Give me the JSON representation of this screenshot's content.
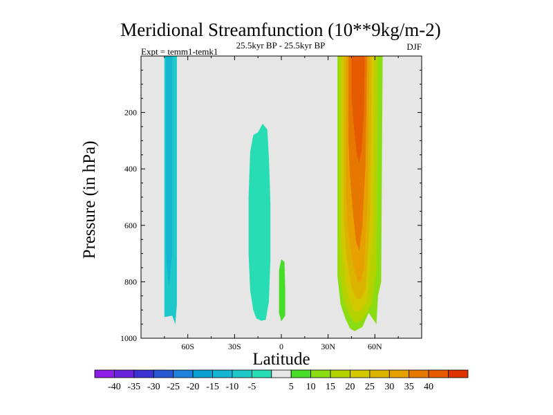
{
  "chart_data": {
    "type": "heatmap",
    "title": "Meridional Streamfunction (10**9kg/m-2)",
    "left_label": "Expt = temm1-temk1",
    "center_label": "25.5kyr BP - 25.5kyr BP",
    "right_label": "DJF",
    "xlabel": "Latitude",
    "ylabel": "Pressure (in hPa)",
    "xlim": [
      -90,
      90
    ],
    "ylim": [
      1000,
      0
    ],
    "xticks": [
      {
        "value": -60,
        "label": "60S"
      },
      {
        "value": -30,
        "label": "30S"
      },
      {
        "value": 0,
        "label": "0"
      },
      {
        "value": 30,
        "label": "30N"
      },
      {
        "value": 60,
        "label": "60N"
      }
    ],
    "yticks": [
      {
        "value": 200,
        "label": "200"
      },
      {
        "value": 400,
        "label": "400"
      },
      {
        "value": 600,
        "label": "600"
      },
      {
        "value": 800,
        "label": "800"
      },
      {
        "value": 1000,
        "label": "1000"
      }
    ],
    "background_color": "#e6e6e6",
    "colorbar": {
      "labels": [
        "-40",
        "-35",
        "-30",
        "-25",
        "-20",
        "-15",
        "-10",
        "-5",
        "5",
        "10",
        "15",
        "20",
        "25",
        "30",
        "35",
        "40"
      ],
      "colors": [
        "#8c1ee6",
        "#6a24dc",
        "#3c32d2",
        "#2856d2",
        "#1e82dc",
        "#0aa0d2",
        "#14b4d2",
        "#1ec8c8",
        "#28dcb4",
        "#e6e6e6",
        "#46dc28",
        "#8cdc14",
        "#b4d200",
        "#d2c800",
        "#dcb400",
        "#e6a000",
        "#e67800",
        "#e65a00",
        "#dc3200"
      ]
    },
    "regions": [
      {
        "name": "south-polar-cell",
        "value": -10,
        "color": "#1ec8c8",
        "points": [
          [
            -75,
            0
          ],
          [
            -67,
            0
          ],
          [
            -67,
            880
          ],
          [
            -68,
            950
          ],
          [
            -70,
            920
          ],
          [
            -75,
            925
          ],
          [
            -75,
            880
          ]
        ]
      },
      {
        "name": "south-polar-cell-core",
        "value": -15,
        "color": "#14b4d2",
        "points": [
          [
            -74,
            0
          ],
          [
            -70,
            0
          ],
          [
            -70,
            700
          ],
          [
            -72,
            820
          ],
          [
            -73,
            770
          ],
          [
            -74,
            700
          ]
        ]
      },
      {
        "name": "south-subtropical-cell",
        "value": -5,
        "color": "#28dcb4",
        "points": [
          [
            -20,
            340
          ],
          [
            -18,
            280
          ],
          [
            -15,
            270
          ],
          [
            -12,
            240
          ],
          [
            -9,
            260
          ],
          [
            -8,
            360
          ],
          [
            -7,
            520
          ],
          [
            -7,
            720
          ],
          [
            -8,
            870
          ],
          [
            -10,
            935
          ],
          [
            -13,
            938
          ],
          [
            -16,
            930
          ],
          [
            -18,
            900
          ],
          [
            -20,
            830
          ],
          [
            -21,
            700
          ],
          [
            -21,
            500
          ]
        ]
      },
      {
        "name": "equatorial-cell",
        "value": 5,
        "color": "#46dc28",
        "points": [
          [
            -1.5,
            880
          ],
          [
            -1.5,
            760
          ],
          [
            0,
            720
          ],
          [
            2,
            730
          ],
          [
            2.5,
            820
          ],
          [
            2.5,
            920
          ],
          [
            0,
            940
          ],
          [
            -1.5,
            910
          ]
        ]
      },
      {
        "name": "north-cell-10",
        "value": 10,
        "color": "#8cdc14",
        "points": [
          [
            36,
            0
          ],
          [
            65,
            0
          ],
          [
            64,
            800
          ],
          [
            62,
            850
          ],
          [
            61,
            950
          ],
          [
            56,
            910
          ],
          [
            52,
            960
          ],
          [
            47,
            975
          ],
          [
            44,
            965
          ],
          [
            41,
            930
          ],
          [
            38,
            880
          ],
          [
            36,
            780
          ]
        ]
      },
      {
        "name": "north-cell-15",
        "value": 15,
        "color": "#b4d200",
        "points": [
          [
            37,
            0
          ],
          [
            62,
            0
          ],
          [
            61,
            760
          ],
          [
            58,
            880
          ],
          [
            52,
            935
          ],
          [
            47,
            945
          ],
          [
            44,
            920
          ],
          [
            40,
            870
          ],
          [
            37,
            760
          ]
        ]
      },
      {
        "name": "north-cell-20",
        "value": 20,
        "color": "#d2c800",
        "points": [
          [
            38.5,
            0
          ],
          [
            60,
            0
          ],
          [
            59,
            620
          ],
          [
            55,
            870
          ],
          [
            51,
            900
          ],
          [
            47,
            905
          ],
          [
            44,
            870
          ],
          [
            41,
            800
          ],
          [
            38.5,
            640
          ]
        ]
      },
      {
        "name": "north-cell-25",
        "value": 25,
        "color": "#dcb400",
        "points": [
          [
            40,
            0
          ],
          [
            58,
            0
          ],
          [
            57,
            560
          ],
          [
            54,
            830
          ],
          [
            51,
            860
          ],
          [
            48,
            860
          ],
          [
            45,
            820
          ],
          [
            42,
            720
          ],
          [
            40,
            580
          ]
        ]
      },
      {
        "name": "north-cell-30",
        "value": 30,
        "color": "#e6a000",
        "points": [
          [
            41.5,
            0
          ],
          [
            56.5,
            0
          ],
          [
            55.5,
            500
          ],
          [
            53,
            750
          ],
          [
            51,
            800
          ],
          [
            49,
            800
          ],
          [
            46,
            740
          ],
          [
            43,
            620
          ],
          [
            41.5,
            500
          ]
        ]
      },
      {
        "name": "north-cell-35",
        "value": 35,
        "color": "#e67800",
        "points": [
          [
            43,
            0
          ],
          [
            55,
            0
          ],
          [
            54,
            380
          ],
          [
            52,
            600
          ],
          [
            50,
            690
          ],
          [
            48,
            660
          ],
          [
            46,
            560
          ],
          [
            44,
            420
          ],
          [
            43,
            300
          ]
        ]
      },
      {
        "name": "north-cell-40",
        "value": 40,
        "color": "#e65a00",
        "points": [
          [
            45,
            0
          ],
          [
            53.5,
            0
          ],
          [
            53,
            200
          ],
          [
            51.5,
            330
          ],
          [
            50,
            380
          ],
          [
            48.5,
            350
          ],
          [
            46.5,
            250
          ],
          [
            45,
            150
          ]
        ]
      }
    ]
  }
}
